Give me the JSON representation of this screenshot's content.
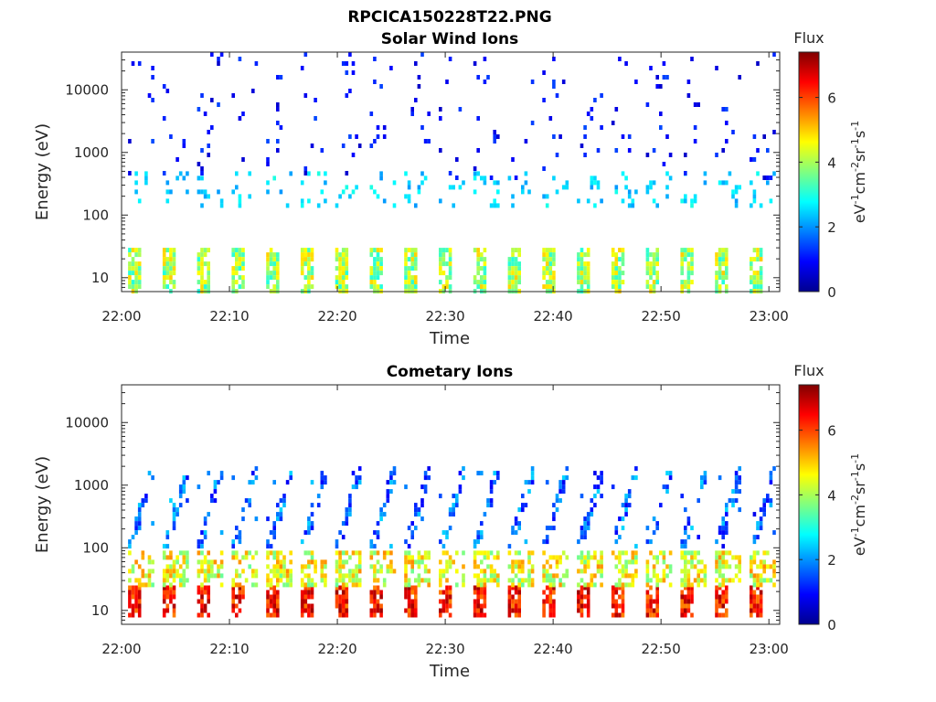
{
  "figure": {
    "title": "RPCICA150228T22.PNG"
  },
  "chart_data": [
    {
      "type": "heatmap",
      "title": "Solar Wind Ions",
      "xlabel": "Time",
      "ylabel": "Energy (eV)",
      "x_ticks": [
        "22:00",
        "22:10",
        "22:20",
        "22:30",
        "22:40",
        "22:50",
        "23:00"
      ],
      "x_range_minutes": [
        0,
        61
      ],
      "y_scale": "log",
      "y_ticks": [
        "10",
        "100",
        "1000",
        "10000"
      ],
      "ylim": [
        6,
        40000
      ],
      "colorbar": {
        "title": "Flux",
        "label": "eV-1 cm-2 sr-1 s-1",
        "ticks": [
          "0",
          "2",
          "4",
          "6"
        ],
        "range": [
          0,
          7.4
        ],
        "colormap": "jet"
      },
      "sweep_period_minutes": 3.2,
      "sweep_start_minutes": [
        0.6,
        3.8,
        7.0,
        10.2,
        13.4,
        16.6,
        19.8,
        23.0,
        26.2,
        29.4,
        32.6,
        35.8,
        39.0,
        42.2,
        45.4,
        48.6,
        51.8,
        55.0,
        58.2
      ],
      "energy_bands": [
        {
          "energy_range_eV": [
            6,
            30
          ],
          "flux_range": [
            3,
            5
          ],
          "description": "low-energy vertical stripes"
        },
        {
          "energy_range_eV": [
            150,
            500
          ],
          "flux_range": [
            2,
            3
          ],
          "description": "scattered mid-energy points"
        },
        {
          "energy_range_eV": [
            400,
            40000
          ],
          "flux_range": [
            0.5,
            1.5
          ],
          "description": "sparse high-energy points"
        }
      ]
    },
    {
      "type": "heatmap",
      "title": "Cometary Ions",
      "xlabel": "Time",
      "ylabel": "Energy (eV)",
      "x_ticks": [
        "22:00",
        "22:10",
        "22:20",
        "22:30",
        "22:40",
        "22:50",
        "23:00"
      ],
      "x_range_minutes": [
        0,
        61
      ],
      "y_scale": "log",
      "y_ticks": [
        "10",
        "100",
        "1000",
        "10000"
      ],
      "ylim": [
        6,
        40000
      ],
      "colorbar": {
        "title": "Flux",
        "label": "eV-1 cm-2 sr-1 s-1",
        "ticks": [
          "0",
          "2",
          "4",
          "6"
        ],
        "range": [
          0,
          7.4
        ],
        "colormap": "jet"
      },
      "sweep_period_minutes": 3.2,
      "sweep_start_minutes": [
        0.6,
        3.8,
        7.0,
        10.2,
        13.4,
        16.6,
        19.8,
        23.0,
        26.2,
        29.4,
        32.6,
        35.8,
        39.0,
        42.2,
        45.4,
        48.6,
        51.8,
        55.0,
        58.2
      ],
      "energy_bands": [
        {
          "energy_range_eV": [
            8,
            25
          ],
          "flux_range": [
            5.5,
            7.2
          ],
          "description": "intense low-energy core"
        },
        {
          "energy_range_eV": [
            25,
            90
          ],
          "flux_range": [
            3.5,
            5.5
          ],
          "description": "moderate flux band"
        },
        {
          "energy_range_eV": [
            100,
            2000
          ],
          "flux_range": [
            0.8,
            2.5
          ],
          "description": "diagonal rising streaks"
        }
      ]
    }
  ]
}
